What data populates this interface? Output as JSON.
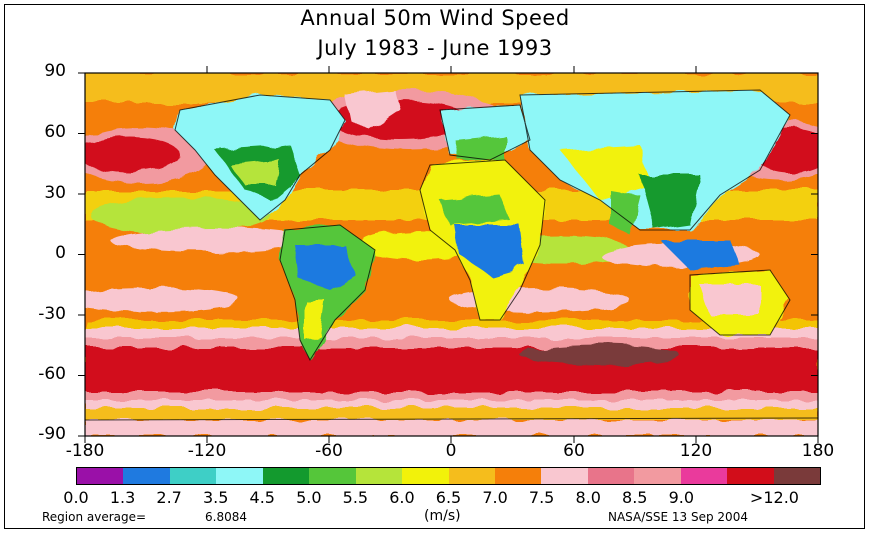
{
  "title_line1": "Annual 50m Wind Speed",
  "title_line2": "July 1983 - June 1993",
  "y_ticks": [
    "90",
    "60",
    "30",
    "0",
    "-30",
    "-60",
    "-90"
  ],
  "x_ticks": [
    "-180",
    "-120",
    "-60",
    "0",
    "60",
    "120",
    "180"
  ],
  "legend": {
    "colors": [
      "#9a10a8",
      "#1f7ae0",
      "#3ecfc6",
      "#8ef7f7",
      "#139a2e",
      "#55c63a",
      "#b5e43a",
      "#f2f20a",
      "#f5bd1c",
      "#f57f0a",
      "#f9c7d0",
      "#e8748a",
      "#f29aa0",
      "#ea3a9c",
      "#d20d1a",
      "#7a3a3a"
    ],
    "labels": [
      "0.0",
      "1.3",
      "2.7",
      "3.5",
      "4.5",
      "5.0",
      "5.5",
      "6.0",
      "6.5",
      "7.0",
      "7.5",
      "8.0",
      "8.5",
      "9.0",
      ">12.0"
    ],
    "units": "(m/s)"
  },
  "region_average_label": "Region average=",
  "region_average_value": "6.8084",
  "credit": "NASA/SSE  13 Sep 2004"
}
